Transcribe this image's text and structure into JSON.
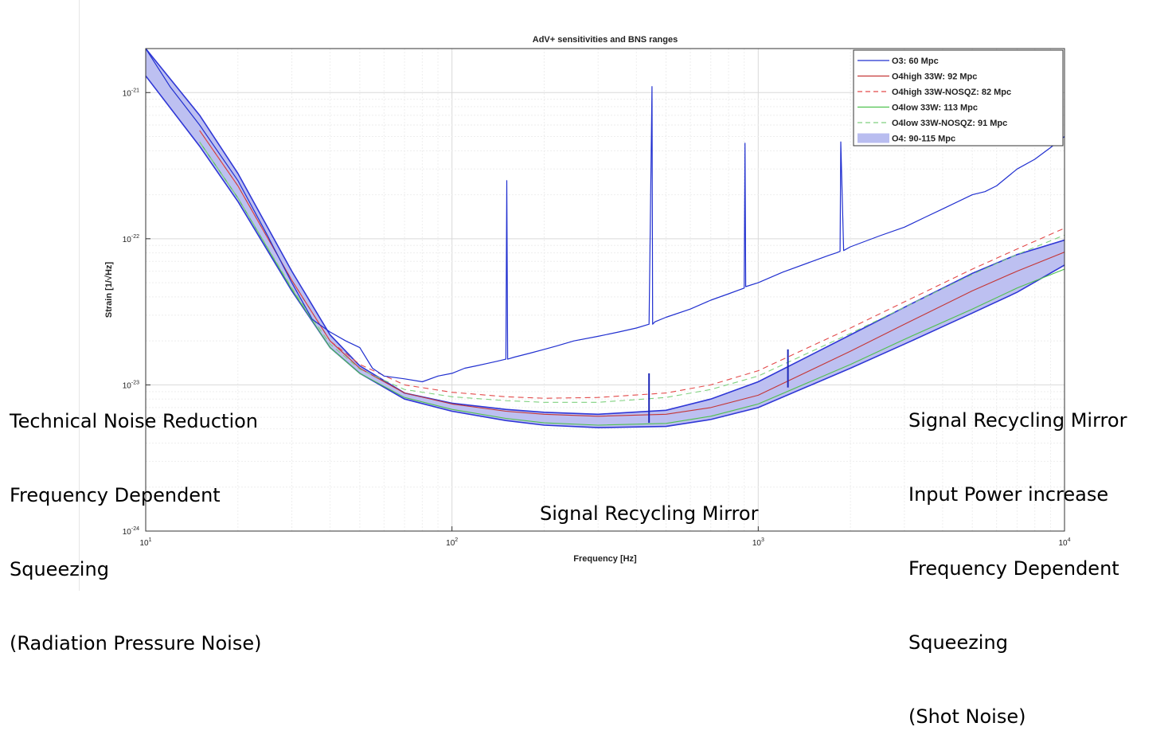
{
  "chart_data": {
    "type": "line",
    "title": "AdV+ sensitivities and BNS ranges",
    "xlabel": "Frequency [Hz]",
    "ylabel": "Strain [1/√Hz]",
    "xscale": "log",
    "yscale": "log",
    "xlim": [
      10,
      10000
    ],
    "ylim": [
      1e-24,
      2e-21
    ],
    "grid": true,
    "legend_position": "top-right",
    "x_ticks": [
      {
        "value": 10,
        "base": "10",
        "exp": "1"
      },
      {
        "value": 100,
        "base": "10",
        "exp": "2"
      },
      {
        "value": 1000,
        "base": "10",
        "exp": "3"
      },
      {
        "value": 10000,
        "base": "10",
        "exp": "4"
      }
    ],
    "y_ticks": [
      {
        "value": 1e-21,
        "base": "10",
        "exp": "-21"
      },
      {
        "value": 1e-22,
        "base": "10",
        "exp": "-22"
      },
      {
        "value": 1e-23,
        "base": "10",
        "exp": "-23"
      },
      {
        "value": 1e-24,
        "base": "10",
        "exp": "-24"
      }
    ],
    "band": {
      "name": "O4: 90-115 Mpc",
      "fill": "#b9bdf0",
      "edge": "#2f37d6",
      "x": [
        10,
        15,
        20,
        30,
        40,
        50,
        70,
        100,
        150,
        200,
        300,
        500,
        700,
        1000,
        2000,
        3000,
        5000,
        7000,
        10000
      ],
      "upper": [
        2e-21,
        7e-22,
        2.8e-22,
        6e-23,
        2.2e-23,
        1.35e-23,
        8.8e-24,
        7.5e-24,
        6.8e-24,
        6.5e-24,
        6.3e-24,
        6.7e-24,
        8e-24,
        1.05e-23,
        2.2e-23,
        3.4e-23,
        5.8e-23,
        7.8e-23,
        9.8e-23
      ],
      "lower": [
        1.3e-21,
        4.3e-22,
        1.8e-22,
        4.4e-23,
        1.8e-23,
        1.2e-23,
        8e-24,
        6.6e-24,
        5.7e-24,
        5.3e-24,
        5.1e-24,
        5.2e-24,
        5.8e-24,
        7e-24,
        1.3e-23,
        1.9e-23,
        3.1e-23,
        4.3e-23,
        6.6e-23
      ]
    },
    "series": [
      {
        "name": "O3: 60 Mpc",
        "color": "#2130d0",
        "dash": "",
        "x": [
          10,
          12,
          15,
          20,
          25,
          30,
          35,
          40,
          45,
          50,
          55,
          60,
          70,
          80,
          90,
          100,
          110,
          120,
          130,
          140,
          150,
          151,
          152,
          160,
          180,
          200,
          220,
          250,
          300,
          350,
          400,
          440,
          450,
          452,
          460,
          500,
          600,
          700,
          800,
          900,
          905,
          910,
          1000,
          1200,
          1500,
          1700,
          1800,
          1850,
          1860,
          1900,
          2000,
          2500,
          3000,
          3500,
          4000,
          5000,
          5500,
          6000,
          7000,
          8000,
          9000,
          10000
        ],
        "y": [
          2e-21,
          1.1e-21,
          6e-22,
          2.5e-22,
          1.05e-22,
          5e-23,
          2.8e-23,
          2.3e-23,
          2e-23,
          1.8e-23,
          1.3e-23,
          1.15e-23,
          1.1e-23,
          1.05e-23,
          1.15e-23,
          1.2e-23,
          1.3e-23,
          1.35e-23,
          1.4e-23,
          1.45e-23,
          1.5e-23,
          2.5e-22,
          1.5e-23,
          1.55e-23,
          1.65e-23,
          1.75e-23,
          1.85e-23,
          2e-23,
          2.15e-23,
          2.3e-23,
          2.45e-23,
          2.6e-23,
          1.1e-21,
          2.6e-23,
          2.7e-23,
          2.9e-23,
          3.3e-23,
          3.8e-23,
          4.2e-23,
          4.6e-23,
          4.5e-22,
          4.7e-23,
          5e-23,
          5.9e-23,
          7e-23,
          7.7e-23,
          8e-23,
          8.2e-23,
          4.6e-22,
          8.3e-23,
          8.8e-23,
          1.05e-22,
          1.2e-22,
          1.4e-22,
          1.6e-22,
          2e-22,
          2.1e-22,
          2.3e-22,
          3e-22,
          3.5e-22,
          4.2e-22,
          5e-22
        ]
      },
      {
        "name": "O4high 33W: 92 Mpc",
        "color": "#c43636",
        "dash": "",
        "x": [
          15,
          20,
          30,
          40,
          50,
          70,
          100,
          150,
          200,
          300,
          500,
          700,
          1000,
          2000,
          3000,
          5000,
          7000,
          10000
        ],
        "y": [
          5.5e-22,
          2.3e-22,
          5.2e-23,
          2e-23,
          1.3e-23,
          8.8e-24,
          7.4e-24,
          6.6e-24,
          6.3e-24,
          6.1e-24,
          6.3e-24,
          7e-24,
          8.5e-24,
          1.7e-23,
          2.6e-23,
          4.4e-23,
          6e-23,
          8.1e-23
        ]
      },
      {
        "name": "O4high 33W-NOSQZ: 82 Mpc",
        "color": "#e34a4a",
        "dash": "7 5",
        "x": [
          15,
          20,
          30,
          40,
          50,
          70,
          100,
          150,
          200,
          300,
          500,
          700,
          1000,
          2000,
          3000,
          5000,
          7000,
          10000
        ],
        "y": [
          5.5e-22,
          2.3e-22,
          5.2e-23,
          2e-23,
          1.38e-23,
          1e-23,
          8.9e-24,
          8.3e-24,
          8.1e-24,
          8.2e-24,
          8.8e-24,
          1e-23,
          1.25e-23,
          2.45e-23,
          3.7e-23,
          6.2e-23,
          8.5e-23,
          1.18e-22
        ]
      },
      {
        "name": "O4low 33W: 113 Mpc",
        "color": "#4ec14e",
        "dash": "",
        "x": [
          15,
          20,
          30,
          40,
          50,
          70,
          100,
          150,
          200,
          300,
          500,
          700,
          1000,
          2000,
          3000,
          5000,
          7000,
          10000
        ],
        "y": [
          4.6e-22,
          1.9e-22,
          4.5e-23,
          1.8e-23,
          1.2e-23,
          8.2e-24,
          6.8e-24,
          5.9e-24,
          5.5e-24,
          5.3e-24,
          5.45e-24,
          6.1e-24,
          7.4e-24,
          1.38e-23,
          2.05e-23,
          3.3e-23,
          4.6e-23,
          6.2e-23
        ]
      },
      {
        "name": "O4low 33W-NOSQZ: 91 Mpc",
        "color": "#7fd17f",
        "dash": "7 5",
        "x": [
          15,
          20,
          30,
          40,
          50,
          70,
          100,
          150,
          200,
          300,
          500,
          700,
          1000,
          2000,
          3000,
          5000,
          7000,
          10000
        ],
        "y": [
          4.6e-22,
          1.9e-22,
          4.6e-23,
          1.9e-23,
          1.28e-23,
          9.3e-24,
          8.3e-24,
          7.8e-24,
          7.6e-24,
          7.6e-24,
          8.2e-24,
          9.3e-24,
          1.15e-23,
          2.25e-23,
          3.4e-23,
          5.7e-23,
          7.8e-23,
          1.06e-22
        ]
      }
    ],
    "markers": [
      {
        "x": 440,
        "y1": 5.5e-24,
        "y2": 1.2e-23
      },
      {
        "x": 1250,
        "y1": 9.6e-24,
        "y2": 1.75e-23
      }
    ],
    "annotations": [
      {
        "id": "radiation",
        "lines": [
          "Technical Noise Reduction",
          "Frequency Dependent",
          "Squeezing",
          "(Radiation Pressure Noise)"
        ]
      },
      {
        "id": "middle",
        "lines": [
          "Signal Recycling Mirror"
        ]
      },
      {
        "id": "shot",
        "lines": [
          "Signal Recycling Mirror",
          "Input Power increase",
          "Frequency Dependent",
          "Squeezing",
          "(Shot Noise)"
        ]
      }
    ]
  }
}
